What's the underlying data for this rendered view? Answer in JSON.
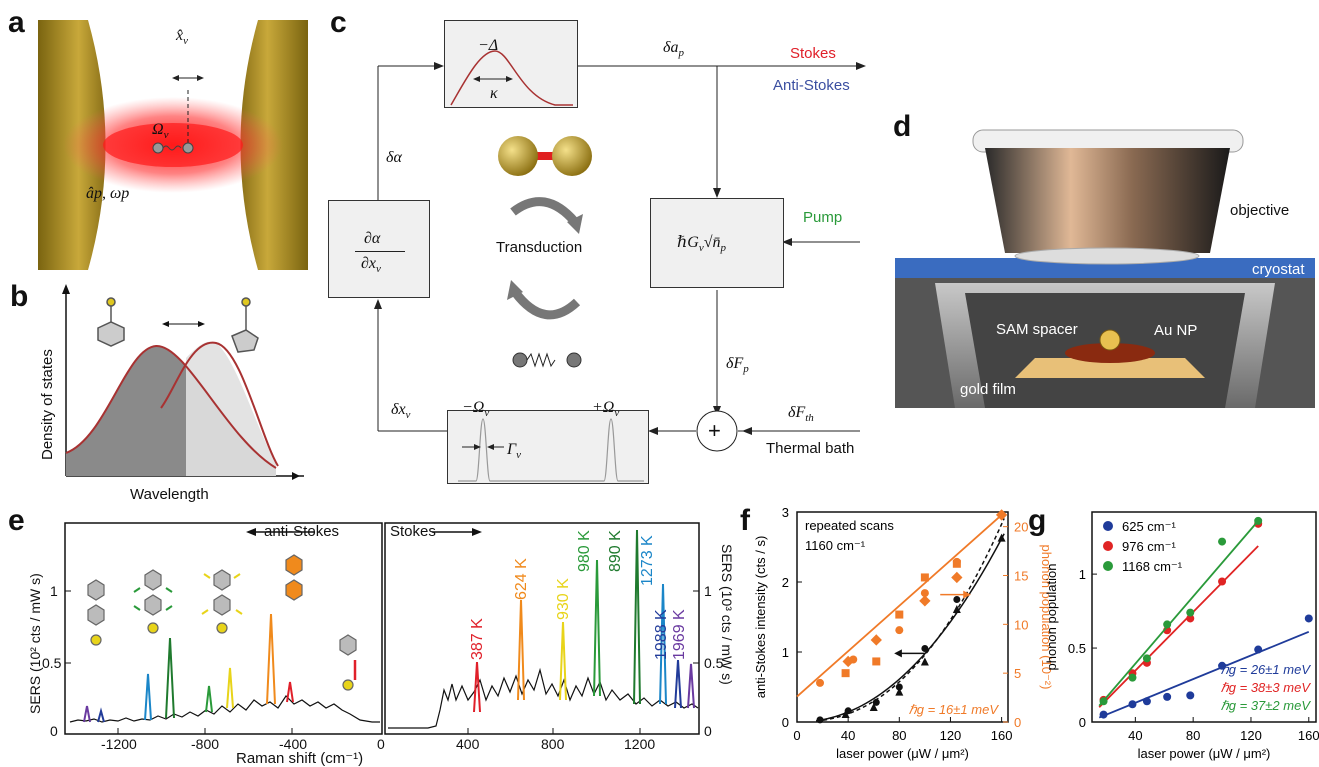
{
  "panels": {
    "a": "a",
    "b": "b",
    "c": "c",
    "d": "d",
    "e": "e",
    "f": "f",
    "g": "g"
  },
  "panel_a": {
    "x_label": "x̂",
    "x_sub": "v",
    "omega": "Ω",
    "omega_sub": "v",
    "ap": "âp, ωp"
  },
  "panel_b": {
    "ylabel": "Density of states",
    "xlabel": "Wavelength"
  },
  "panel_c": {
    "delta": "−Δ",
    "kappa": "κ",
    "delta_ap": "δa",
    "delta_ap_sub": "p",
    "stokes": "Stokes",
    "anti_stokes": "Anti-Stokes",
    "delta_alpha": "δα",
    "d_alpha_num": "∂α",
    "d_alpha_den": "∂x",
    "d_alpha_den_sub": "v",
    "transduction": "Transduction",
    "coupling": "ℏG",
    "coupling_sub": "v",
    "coupling_sqrt": "√n̄",
    "coupling_sqrt_sub": "p",
    "pump": "Pump",
    "delta_fp": "δF",
    "delta_fp_sub": "p",
    "delta_fth": "δF",
    "delta_fth_sub": "th",
    "thermal": "Thermal bath",
    "delta_xv": "δx",
    "delta_xv_sub": "v",
    "minus_omega": "−Ω",
    "plus_omega": "+Ω",
    "omega_sub": "v",
    "gamma": "Γ",
    "gamma_sub": "v",
    "plus": "+"
  },
  "panel_d": {
    "objective": "objective",
    "cryostat": "cryostat",
    "sam": "SAM spacer",
    "aunp": "Au NP",
    "gold": "gold film"
  },
  "panel_e": {
    "anti_stokes": "anti-Stokes",
    "stokes": "Stokes",
    "ylabel_left": "SERS (10² cts / mW s)",
    "ylabel_right": "SERS (10³ cts / mW s)",
    "xlabel": "Raman shift (cm⁻¹)",
    "left_ticks_x": [
      "-1200",
      "-800",
      "-400",
      "0"
    ],
    "right_ticks_x": [
      "400",
      "800",
      "1200"
    ],
    "left_ticks_y": [
      "1",
      "0.5",
      "0"
    ],
    "right_ticks_y": [
      "1",
      "0.5",
      "0"
    ],
    "temps": [
      {
        "label": "387 K",
        "color": "#e0202a"
      },
      {
        "label": "624 K",
        "color": "#f08a1c"
      },
      {
        "label": "930 K",
        "color": "#e8d41a"
      },
      {
        "label": "980 K",
        "color": "#2a9a3a"
      },
      {
        "label": "890 K",
        "color": "#1f7a2e"
      },
      {
        "label": "1273 K",
        "color": "#1b86c8"
      },
      {
        "label": "1988 K",
        "color": "#223c9a"
      },
      {
        "label": "1969 K",
        "color": "#6a3aa0"
      }
    ]
  },
  "chart_data": [
    {
      "type": "scatter",
      "title": "repeated scans 1160 cm⁻¹",
      "xlabel": "laser power (μW / μm²)",
      "ylabel": "anti-Stokes intensity (cts / s)",
      "ylabel_right": "phonon population (10⁻²)",
      "xlim": [
        0,
        165
      ],
      "ylim": [
        0,
        3
      ],
      "ylim_right": [
        0,
        21.5
      ],
      "x_ticks": [
        "0",
        "40",
        "80",
        "120",
        "160"
      ],
      "y_ticks": [
        "0",
        "1",
        "2",
        "3"
      ],
      "y_right_ticks": [
        "0",
        "5",
        "10",
        "15",
        "20"
      ],
      "annotation": "ℏg = 16±1 meV",
      "series": [
        {
          "name": "phonon population",
          "color": "#f07a28",
          "points": [
            [
              18,
              4
            ],
            [
              38,
              5
            ],
            [
              40,
              6.2
            ],
            [
              44,
              6.4
            ],
            [
              62,
              6.2
            ],
            [
              62,
              8.4
            ],
            [
              80,
              9.4
            ],
            [
              80,
              11
            ],
            [
              100,
              12.4
            ],
            [
              100,
              13.2
            ],
            [
              100,
              14.8
            ],
            [
              125,
              14.8
            ],
            [
              125,
              16.4
            ],
            [
              125,
              16.2
            ],
            [
              160,
              21.2
            ]
          ]
        },
        {
          "name": "anti-Stokes intensity",
          "color": "#111111",
          "points": [
            [
              18,
              0.03
            ],
            [
              38,
              0.1
            ],
            [
              40,
              0.16
            ],
            [
              60,
              0.2
            ],
            [
              62,
              0.28
            ],
            [
              80,
              0.42
            ],
            [
              80,
              0.5
            ],
            [
              100,
              0.85
            ],
            [
              100,
              1.05
            ],
            [
              125,
              1.6
            ],
            [
              125,
              1.75
            ],
            [
              160,
              2.62
            ]
          ]
        }
      ]
    },
    {
      "type": "scatter",
      "xlabel": "laser power (μW / μm²)",
      "ylabel": "phonon population",
      "xlim": [
        10,
        165
      ],
      "ylim": [
        0,
        1.42
      ],
      "x_ticks": [
        "40",
        "80",
        "120",
        "160"
      ],
      "y_ticks": [
        "0",
        "0.5",
        "1"
      ],
      "series": [
        {
          "name": "625 cm⁻¹",
          "color": "#1f3b9a",
          "annotation": "ℏg = 26±1 meV",
          "points": [
            [
              18,
              0.05
            ],
            [
              38,
              0.12
            ],
            [
              48,
              0.14
            ],
            [
              62,
              0.17
            ],
            [
              78,
              0.18
            ],
            [
              100,
              0.38
            ],
            [
              125,
              0.49
            ],
            [
              160,
              0.7
            ]
          ]
        },
        {
          "name": "976 cm⁻¹",
          "color": "#e02424",
          "annotation": "ℏg = 38±3 meV",
          "points": [
            [
              18,
              0.15
            ],
            [
              38,
              0.33
            ],
            [
              48,
              0.4
            ],
            [
              62,
              0.62
            ],
            [
              78,
              0.7
            ],
            [
              100,
              0.95
            ],
            [
              125,
              1.34
            ]
          ]
        },
        {
          "name": "1168 cm⁻¹",
          "color": "#2a9a3a",
          "annotation": "ℏg = 37±2 meV",
          "points": [
            [
              18,
              0.14
            ],
            [
              38,
              0.3
            ],
            [
              48,
              0.43
            ],
            [
              62,
              0.66
            ],
            [
              78,
              0.74
            ],
            [
              100,
              1.22
            ],
            [
              125,
              1.36
            ]
          ]
        }
      ]
    }
  ]
}
